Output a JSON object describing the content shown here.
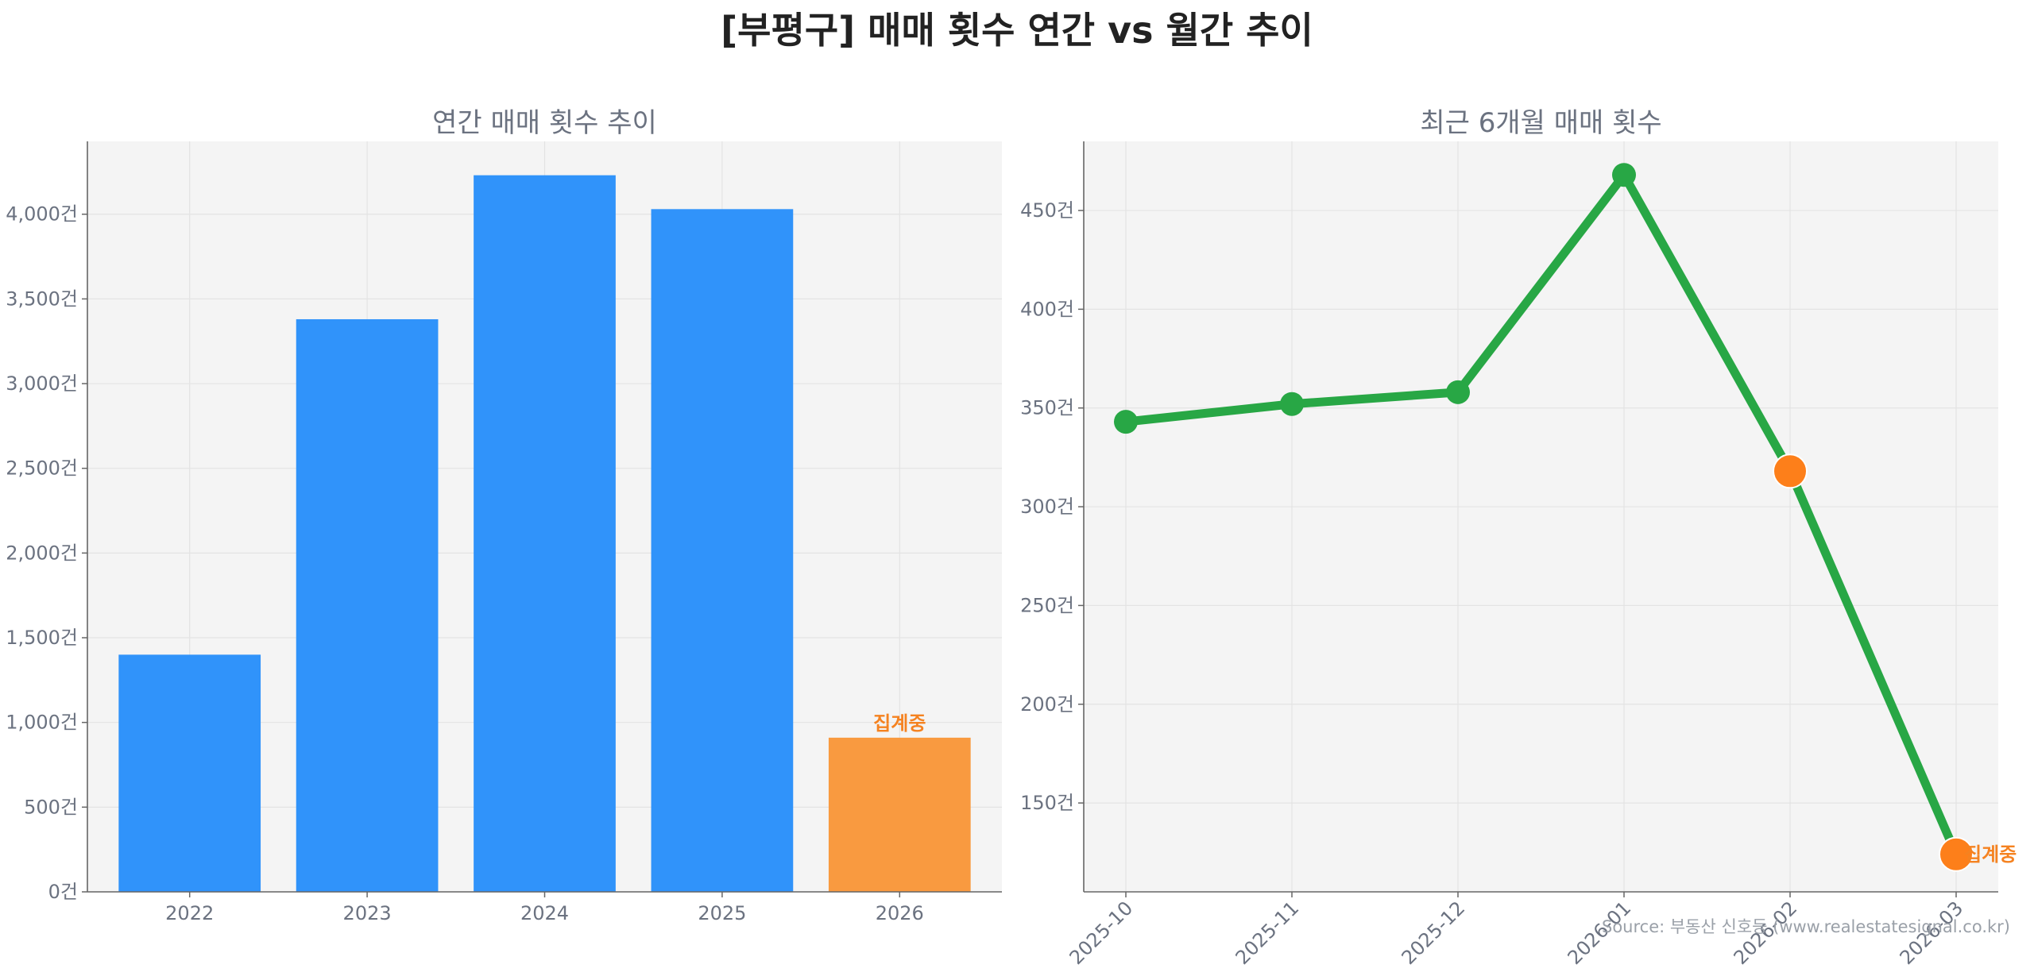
{
  "title": "[부평구] 매매 횟수 연간 vs 월간 추이",
  "source": "Source: 부동산 신호등 (www.realestatesignal.co.kr)",
  "colors": {
    "bar": "#3093fa",
    "bar_highlight": "#f99a40",
    "line": "#28a745",
    "marker_highlight": "#fd7f1a",
    "plot_bg": "#f4f4f4",
    "status_text": "#f58220"
  },
  "chart_data": [
    {
      "type": "bar",
      "title": "연간 매매 횟수 추이",
      "categories": [
        "2022",
        "2023",
        "2024",
        "2025",
        "2026"
      ],
      "values": [
        1400,
        3380,
        4230,
        4030,
        910
      ],
      "highlight_index": 4,
      "highlight_label": "집계중",
      "ylim": [
        0,
        4430
      ],
      "yticks": [
        0,
        500,
        1000,
        1500,
        2000,
        2500,
        3000,
        3500,
        4000
      ],
      "ytick_labels": [
        "0건",
        "500건",
        "1,000건",
        "1,500건",
        "2,000건",
        "2,500건",
        "3,000건",
        "3,500건",
        "4,000건"
      ],
      "grid": true
    },
    {
      "type": "line",
      "title": "최근 6개월 매매 횟수",
      "categories": [
        "2025-10",
        "2025-11",
        "2025-12",
        "2026-01",
        "2026-02",
        "2026-03"
      ],
      "values": [
        343,
        352,
        358,
        468,
        318,
        124
      ],
      "highlight_indices": [
        4,
        5
      ],
      "highlight_label": "집계중",
      "ylim": [
        105,
        485
      ],
      "yticks": [
        150,
        200,
        250,
        300,
        350,
        400,
        450
      ],
      "ytick_labels": [
        "150건",
        "200건",
        "250건",
        "300건",
        "350건",
        "400건",
        "450건"
      ],
      "grid": true
    }
  ]
}
